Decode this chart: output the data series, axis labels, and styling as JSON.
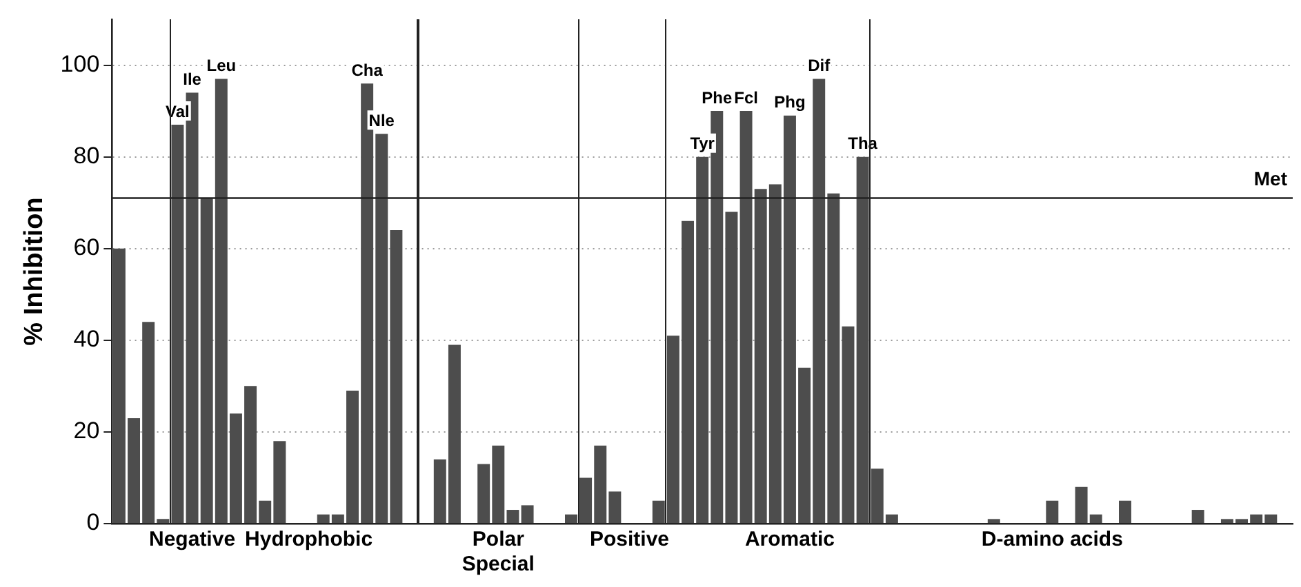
{
  "chart_data": {
    "type": "bar",
    "ylabel": "% Inhibition",
    "color": "#4d4d4d",
    "categories": [
      null,
      null,
      null,
      null,
      null,
      "Negative",
      null,
      null,
      null,
      null,
      null,
      null,
      null,
      "Hydrophobic",
      null,
      null,
      null,
      null,
      null,
      null,
      null,
      null,
      null,
      null,
      null,
      null,
      "Polar\nSpecial",
      null,
      null,
      null,
      null,
      null,
      null,
      null,
      null,
      "Positive",
      null,
      null,
      null,
      null,
      null,
      null,
      null,
      null,
      null,
      null,
      "Aromatic",
      null,
      null,
      null,
      null,
      null,
      null,
      null,
      null,
      null,
      null,
      null,
      null,
      null,
      null,
      null,
      null,
      null,
      "D-amino acids",
      null,
      null,
      null,
      null,
      null,
      null,
      null,
      null,
      null,
      null,
      null,
      null,
      null,
      null,
      null,
      null
    ],
    "values": [
      60,
      23,
      44,
      1,
      87,
      94,
      71,
      97,
      24,
      30,
      5,
      18,
      0,
      0,
      2,
      2,
      29,
      96,
      85,
      64,
      0,
      0,
      14,
      39,
      0,
      13,
      17,
      3,
      4,
      0,
      0,
      2,
      10,
      17,
      7,
      0,
      0,
      5,
      41,
      66,
      80,
      90,
      68,
      90,
      73,
      74,
      89,
      34,
      97,
      72,
      43,
      80,
      12,
      2,
      0,
      0,
      0,
      0,
      0,
      0,
      1,
      0,
      0,
      0,
      5,
      0,
      8,
      2,
      0,
      5,
      0,
      0,
      0,
      0,
      3,
      0,
      1,
      1,
      2,
      2,
      0
    ],
    "value_labels": [
      null,
      null,
      null,
      null,
      "Val",
      "Ile",
      null,
      "Leu",
      null,
      null,
      null,
      null,
      null,
      null,
      null,
      null,
      null,
      "Cha",
      "Nle",
      null,
      null,
      null,
      null,
      null,
      null,
      null,
      null,
      null,
      null,
      null,
      null,
      null,
      null,
      null,
      null,
      null,
      null,
      null,
      null,
      null,
      "Tyr",
      "Phe",
      null,
      "Fcl",
      null,
      null,
      "Phg",
      null,
      "Dif",
      null,
      null,
      "Tha",
      null,
      null,
      null,
      null,
      null,
      null,
      null,
      null,
      null,
      null,
      null,
      null,
      null,
      null,
      null,
      null,
      null,
      null,
      null,
      null,
      null,
      null,
      null,
      null,
      null,
      null,
      null,
      null,
      null
    ],
    "ylim": [
      0,
      110
    ],
    "yticks": [
      0,
      20,
      40,
      60,
      80,
      100
    ],
    "grid": "y",
    "ref_lines": [
      {
        "axis": "y",
        "value": 71,
        "label": "Met"
      }
    ]
  }
}
